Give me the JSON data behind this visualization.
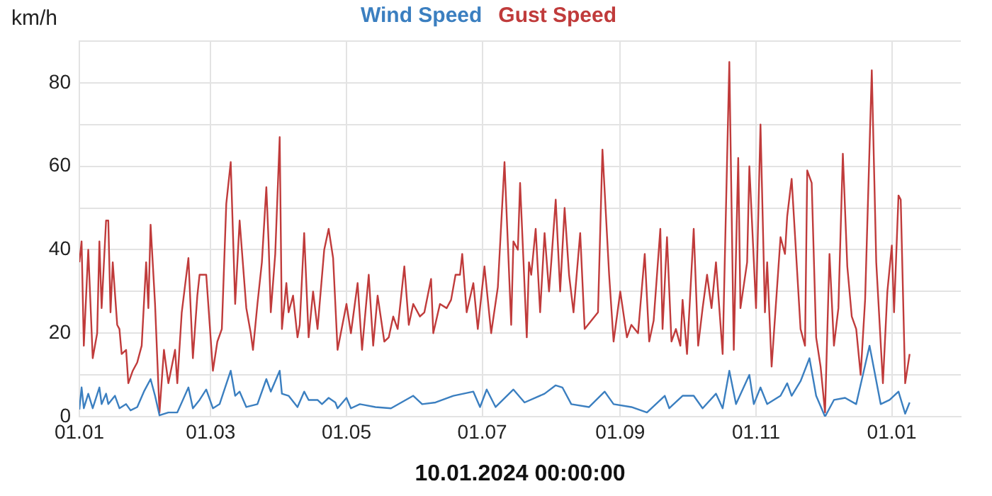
{
  "chart_data": {
    "type": "line",
    "xlabel": "10.01.2024 00:00:00",
    "ylabel": "km/h",
    "legend": "top",
    "grid": true,
    "marker": "none",
    "line_style": "solid",
    "xlim": [
      "2023-01-01",
      "2024-02-01"
    ],
    "xticks": [
      {
        "value": "2023-01-01",
        "label": "01.01"
      },
      {
        "value": "2023-03-01",
        "label": "01.03"
      },
      {
        "value": "2023-05-01",
        "label": "01.05"
      },
      {
        "value": "2023-07-01",
        "label": "01.07"
      },
      {
        "value": "2023-09-01",
        "label": "01.09"
      },
      {
        "value": "2023-11-01",
        "label": "01.11"
      },
      {
        "value": "2024-01-01",
        "label": "01.01"
      }
    ],
    "ylim": [
      0,
      90
    ],
    "yticks": [
      0,
      {
        "value": 10,
        "label": null
      },
      20,
      {
        "value": 30,
        "label": null
      },
      40,
      {
        "value": 50,
        "label": null
      },
      60,
      {
        "value": 70,
        "label": null
      },
      80,
      {
        "value": 90,
        "label": null
      }
    ],
    "series": [
      {
        "name": "Wind Speed",
        "color": "#3b7fc0",
        "x": [
          "2023-01-01",
          "2023-01-02",
          "2023-01-03",
          "2023-01-05",
          "2023-01-07",
          "2023-01-10",
          "2023-01-11",
          "2023-01-13",
          "2023-01-14",
          "2023-01-17",
          "2023-01-19",
          "2023-01-22",
          "2023-01-24",
          "2023-01-27",
          "2023-01-30",
          "2023-02-02",
          "2023-02-04",
          "2023-02-06",
          "2023-02-10",
          "2023-02-14",
          "2023-02-19",
          "2023-02-21",
          "2023-02-24",
          "2023-02-27",
          "2023-03-02",
          "2023-03-05",
          "2023-03-10",
          "2023-03-12",
          "2023-03-14",
          "2023-03-17",
          "2023-03-22",
          "2023-03-26",
          "2023-03-28",
          "2023-04-01",
          "2023-04-02",
          "2023-04-05",
          "2023-04-09",
          "2023-04-12",
          "2023-04-14",
          "2023-04-18",
          "2023-04-20",
          "2023-04-23",
          "2023-04-26",
          "2023-04-27",
          "2023-05-01",
          "2023-05-03",
          "2023-05-07",
          "2023-05-14",
          "2023-05-21",
          "2023-05-31",
          "2023-06-04",
          "2023-06-10",
          "2023-06-18",
          "2023-06-27",
          "2023-06-30",
          "2023-07-03",
          "2023-07-07",
          "2023-07-15",
          "2023-07-20",
          "2023-07-29",
          "2023-08-03",
          "2023-08-06",
          "2023-08-10",
          "2023-08-18",
          "2023-08-25",
          "2023-08-29",
          "2023-09-06",
          "2023-09-13",
          "2023-09-21",
          "2023-09-23",
          "2023-09-29",
          "2023-10-04",
          "2023-10-08",
          "2023-10-14",
          "2023-10-17",
          "2023-10-20",
          "2023-10-23",
          "2023-10-29",
          "2023-10-31",
          "2023-11-03",
          "2023-11-06",
          "2023-11-12",
          "2023-11-15",
          "2023-11-17",
          "2023-11-21",
          "2023-11-25",
          "2023-11-28",
          "2023-12-02",
          "2023-12-06",
          "2023-12-11",
          "2023-12-16",
          "2023-12-22",
          "2023-12-27",
          "2023-12-31",
          "2024-01-04",
          "2024-01-07",
          "2024-01-09"
        ],
        "values": [
          1.7,
          7,
          2,
          5.5,
          2,
          7,
          3,
          5.5,
          3,
          5,
          2,
          3,
          1.5,
          2.3,
          6,
          9,
          5,
          0.3,
          1,
          1,
          7,
          2,
          4,
          6.5,
          2,
          3,
          11,
          5,
          6,
          2.3,
          3,
          9,
          6,
          11,
          5.5,
          5,
          2.3,
          6,
          4,
          4,
          3,
          4.5,
          3.4,
          2,
          4.5,
          2,
          3,
          2.3,
          2,
          5,
          3,
          3.4,
          5,
          6,
          2.3,
          6.5,
          2.3,
          6.5,
          3.4,
          5.5,
          7.5,
          7,
          3,
          2.3,
          6,
          3,
          2.3,
          1,
          5,
          2,
          5,
          5,
          2,
          5.5,
          2,
          11,
          3,
          10,
          3,
          7,
          3,
          5,
          8,
          5,
          8.5,
          14,
          5,
          0,
          4,
          4.5,
          3,
          17,
          3,
          4,
          6,
          0.7,
          3.4
        ]
      },
      {
        "name": "Gust Speed",
        "color": "#c03b3b",
        "x": [
          "2023-01-01",
          "2023-01-02",
          "2023-01-03",
          "2023-01-05",
          "2023-01-07",
          "2023-01-09",
          "2023-01-10",
          "2023-01-11",
          "2023-01-13",
          "2023-01-14",
          "2023-01-15",
          "2023-01-16",
          "2023-01-18",
          "2023-01-19",
          "2023-01-20",
          "2023-01-22",
          "2023-01-23",
          "2023-01-25",
          "2023-01-27",
          "2023-01-29",
          "2023-01-31",
          "2023-02-01",
          "2023-02-02",
          "2023-02-04",
          "2023-02-06",
          "2023-02-08",
          "2023-02-10",
          "2023-02-13",
          "2023-02-14",
          "2023-02-16",
          "2023-02-19",
          "2023-02-21",
          "2023-02-23",
          "2023-02-24",
          "2023-02-27",
          "2023-03-02",
          "2023-03-04",
          "2023-03-06",
          "2023-03-08",
          "2023-03-10",
          "2023-03-12",
          "2023-03-14",
          "2023-03-17",
          "2023-03-19",
          "2023-03-20",
          "2023-03-22",
          "2023-03-24",
          "2023-03-26",
          "2023-03-27",
          "2023-03-28",
          "2023-03-30",
          "2023-04-01",
          "2023-04-02",
          "2023-04-04",
          "2023-04-05",
          "2023-04-07",
          "2023-04-09",
          "2023-04-10",
          "2023-04-12",
          "2023-04-14",
          "2023-04-16",
          "2023-04-18",
          "2023-04-21",
          "2023-04-23",
          "2023-04-25",
          "2023-04-27",
          "2023-05-01",
          "2023-05-03",
          "2023-05-06",
          "2023-05-08",
          "2023-05-11",
          "2023-05-13",
          "2023-05-15",
          "2023-05-18",
          "2023-05-20",
          "2023-05-22",
          "2023-05-24",
          "2023-05-27",
          "2023-05-29",
          "2023-05-31",
          "2023-06-03",
          "2023-06-05",
          "2023-06-08",
          "2023-06-09",
          "2023-06-12",
          "2023-06-15",
          "2023-06-17",
          "2023-06-19",
          "2023-06-21",
          "2023-06-22",
          "2023-06-24",
          "2023-06-27",
          "2023-06-29",
          "2023-07-02",
          "2023-07-05",
          "2023-07-08",
          "2023-07-11",
          "2023-07-14",
          "2023-07-15",
          "2023-07-17",
          "2023-07-18",
          "2023-07-21",
          "2023-07-22",
          "2023-07-23",
          "2023-07-25",
          "2023-07-27",
          "2023-07-29",
          "2023-07-31",
          "2023-08-01",
          "2023-08-03",
          "2023-08-05",
          "2023-08-07",
          "2023-08-09",
          "2023-08-11",
          "2023-08-14",
          "2023-08-16",
          "2023-08-19",
          "2023-08-22",
          "2023-08-24",
          "2023-08-27",
          "2023-08-29",
          "2023-09-01",
          "2023-09-04",
          "2023-09-06",
          "2023-09-09",
          "2023-09-12",
          "2023-09-14",
          "2023-09-16",
          "2023-09-19",
          "2023-09-20",
          "2023-09-22",
          "2023-09-24",
          "2023-09-26",
          "2023-09-28",
          "2023-09-29",
          "2023-10-01",
          "2023-10-04",
          "2023-10-06",
          "2023-10-08",
          "2023-10-10",
          "2023-10-12",
          "2023-10-14",
          "2023-10-17",
          "2023-10-20",
          "2023-10-22",
          "2023-10-24",
          "2023-10-25",
          "2023-10-28",
          "2023-10-29",
          "2023-11-01",
          "2023-11-03",
          "2023-11-05",
          "2023-11-06",
          "2023-11-08",
          "2023-11-12",
          "2023-11-14",
          "2023-11-15",
          "2023-11-17",
          "2023-11-21",
          "2023-11-23",
          "2023-11-24",
          "2023-11-26",
          "2023-11-28",
          "2023-11-30",
          "2023-12-02",
          "2023-12-04",
          "2023-12-06",
          "2023-12-08",
          "2023-12-10",
          "2023-12-12",
          "2023-12-14",
          "2023-12-16",
          "2023-12-18",
          "2023-12-20",
          "2023-12-23",
          "2023-12-25",
          "2023-12-28",
          "2023-12-30",
          "2024-01-01",
          "2024-01-02",
          "2024-01-04",
          "2024-01-05",
          "2024-01-07",
          "2024-01-09"
        ],
        "values": [
          37,
          42,
          17,
          40,
          14,
          20,
          42,
          26,
          47,
          47,
          25,
          37,
          22,
          21,
          15,
          16,
          8,
          11,
          13,
          17,
          37,
          26,
          46,
          27,
          1,
          16,
          8,
          16,
          8,
          25,
          38,
          14,
          29,
          34,
          34,
          11,
          18,
          21,
          51,
          61,
          27,
          47,
          26,
          20,
          16,
          27,
          37,
          55,
          42,
          25,
          39,
          67,
          21,
          32,
          25,
          29,
          19,
          22,
          44,
          19,
          30,
          21,
          40,
          45,
          38,
          16,
          27,
          20,
          32,
          16,
          34,
          17,
          29,
          18,
          19,
          24,
          21,
          36,
          22,
          27,
          24,
          25,
          33,
          20,
          27,
          26,
          28,
          34,
          34,
          39,
          25,
          32,
          21,
          36,
          20,
          31,
          61,
          22,
          42,
          40,
          56,
          19,
          37,
          34,
          45,
          25,
          44,
          30,
          37,
          52,
          30,
          50,
          34,
          25,
          44,
          21,
          23,
          25,
          64,
          34,
          18,
          30,
          19,
          22,
          20,
          39,
          18,
          23,
          45,
          21,
          43,
          18,
          21,
          17,
          28,
          15,
          45,
          17,
          26,
          34,
          26,
          37,
          15,
          85,
          16,
          62,
          26,
          37,
          60,
          26,
          70,
          25,
          37,
          12,
          43,
          39,
          48,
          57,
          21,
          17,
          59,
          56,
          19,
          12,
          1,
          39,
          17,
          26,
          63,
          36,
          24,
          21,
          10,
          28,
          83,
          37,
          8,
          30,
          41,
          25,
          53,
          52,
          8,
          15
        ]
      }
    ]
  }
}
